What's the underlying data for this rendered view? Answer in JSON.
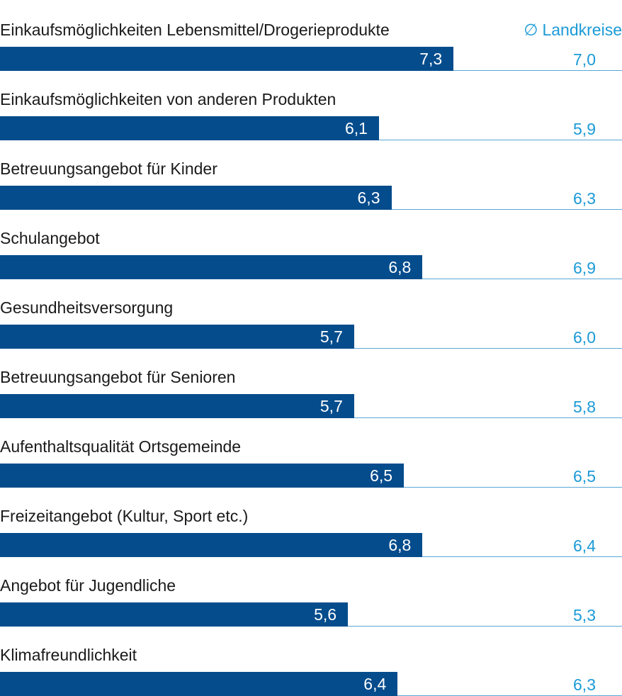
{
  "chart_data": {
    "type": "bar",
    "orientation": "horizontal",
    "categories": [
      "Einkaufsmöglichkeiten Lebensmittel/Drogerieprodukte",
      "Einkaufsmöglichkeiten von anderen Produkten",
      "Betreuungsangebot für Kinder",
      "Schulangebot",
      "Gesundheitsversorgung",
      "Betreuungsangebot für Senioren",
      "Aufenthaltsqualität Ortsgemeinde",
      "Freizeitangebot (Kultur, Sport etc.)",
      "Angebot für Jugendliche",
      "Klimafreundlichkeit"
    ],
    "values": [
      7.3,
      6.1,
      6.3,
      6.8,
      5.7,
      5.7,
      6.5,
      6.8,
      5.6,
      6.4
    ],
    "value_labels": [
      "7,3",
      "6,1",
      "6,3",
      "6,8",
      "5,7",
      "5,7",
      "6,5",
      "6,8",
      "5,6",
      "6,4"
    ],
    "comparison": {
      "label": "Landkreise",
      "symbol": "∅",
      "values": [
        7.0,
        5.9,
        6.3,
        6.9,
        6.0,
        5.8,
        6.5,
        6.4,
        5.3,
        6.3
      ],
      "value_labels": [
        "7,0",
        "5,9",
        "6,3",
        "6,9",
        "6,0",
        "5,8",
        "6,5",
        "6,4",
        "5,3",
        "6,3"
      ]
    },
    "xlim": [
      0,
      10
    ],
    "grid": false,
    "colors": {
      "bar": "#044c8c",
      "comparison": "#1b9ad6",
      "baseline": "#5aa7d6",
      "label": "#1a1a1a"
    }
  }
}
